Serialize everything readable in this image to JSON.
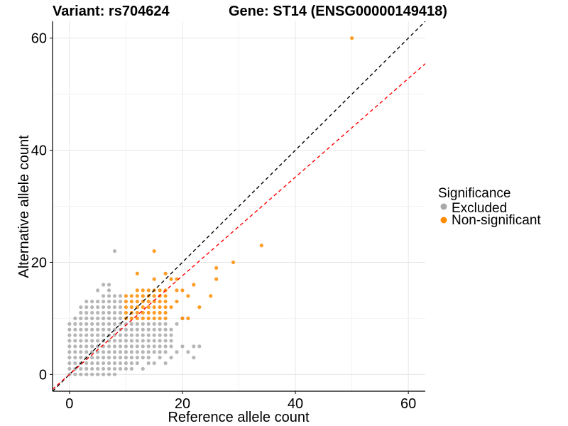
{
  "chart_data": {
    "type": "scatter",
    "title_left": "Variant: rs704624",
    "title_right": "Gene: ST14 (ENSG00000149418)",
    "xlabel": "Reference allele count",
    "ylabel": "Alternative allele count",
    "xlim": [
      -3,
      63
    ],
    "ylim": [
      -3,
      63
    ],
    "xticks": [
      0,
      20,
      40,
      60
    ],
    "yticks": [
      0,
      20,
      40,
      60
    ],
    "xtick_labels": [
      "0",
      "20",
      "40",
      "60"
    ],
    "ytick_labels": [
      "0",
      "20",
      "40",
      "60"
    ],
    "legend": {
      "title": "Significance",
      "position": "right",
      "entries": [
        {
          "label": "Excluded",
          "color": "#a9a9a9"
        },
        {
          "label": "Non-significant",
          "color": "#ff8c00"
        }
      ]
    },
    "reference_lines": [
      {
        "name": "identity",
        "slope": 1.0,
        "intercept": 0,
        "color": "#000000",
        "style": "dashed"
      },
      {
        "name": "fit",
        "slope": 0.88,
        "intercept": 0,
        "color": "#ff0000",
        "style": "dashed"
      }
    ],
    "series": [
      {
        "name": "Excluded",
        "color": "#a9a9a9",
        "points": [
          [
            0,
            0
          ],
          [
            0,
            1
          ],
          [
            0,
            2
          ],
          [
            0,
            3
          ],
          [
            0,
            4
          ],
          [
            0,
            5
          ],
          [
            0,
            6
          ],
          [
            0,
            7
          ],
          [
            0,
            8
          ],
          [
            0,
            9
          ],
          [
            1,
            0
          ],
          [
            1,
            1
          ],
          [
            1,
            2
          ],
          [
            1,
            3
          ],
          [
            1,
            4
          ],
          [
            1,
            5
          ],
          [
            1,
            6
          ],
          [
            1,
            7
          ],
          [
            1,
            8
          ],
          [
            1,
            9
          ],
          [
            1,
            10
          ],
          [
            2,
            0
          ],
          [
            2,
            1
          ],
          [
            2,
            2
          ],
          [
            2,
            3
          ],
          [
            2,
            4
          ],
          [
            2,
            5
          ],
          [
            2,
            6
          ],
          [
            2,
            7
          ],
          [
            2,
            8
          ],
          [
            2,
            9
          ],
          [
            2,
            10
          ],
          [
            2,
            11
          ],
          [
            2,
            12
          ],
          [
            3,
            0
          ],
          [
            3,
            1
          ],
          [
            3,
            2
          ],
          [
            3,
            3
          ],
          [
            3,
            4
          ],
          [
            3,
            5
          ],
          [
            3,
            6
          ],
          [
            3,
            7
          ],
          [
            3,
            8
          ],
          [
            3,
            9
          ],
          [
            3,
            10
          ],
          [
            3,
            11
          ],
          [
            3,
            12
          ],
          [
            3,
            13
          ],
          [
            4,
            0
          ],
          [
            4,
            1
          ],
          [
            4,
            2
          ],
          [
            4,
            3
          ],
          [
            4,
            4
          ],
          [
            4,
            5
          ],
          [
            4,
            6
          ],
          [
            4,
            7
          ],
          [
            4,
            8
          ],
          [
            4,
            9
          ],
          [
            4,
            10
          ],
          [
            4,
            11
          ],
          [
            4,
            12
          ],
          [
            4,
            13
          ],
          [
            5,
            0
          ],
          [
            5,
            1
          ],
          [
            5,
            2
          ],
          [
            5,
            3
          ],
          [
            5,
            4
          ],
          [
            5,
            5
          ],
          [
            5,
            6
          ],
          [
            5,
            7
          ],
          [
            5,
            8
          ],
          [
            5,
            9
          ],
          [
            5,
            10
          ],
          [
            5,
            11
          ],
          [
            5,
            12
          ],
          [
            5,
            13
          ],
          [
            5,
            15
          ],
          [
            6,
            0
          ],
          [
            6,
            1
          ],
          [
            6,
            2
          ],
          [
            6,
            3
          ],
          [
            6,
            4
          ],
          [
            6,
            5
          ],
          [
            6,
            6
          ],
          [
            6,
            7
          ],
          [
            6,
            8
          ],
          [
            6,
            9
          ],
          [
            6,
            10
          ],
          [
            6,
            11
          ],
          [
            6,
            12
          ],
          [
            6,
            13
          ],
          [
            6,
            14
          ],
          [
            6,
            16
          ],
          [
            7,
            0
          ],
          [
            7,
            1
          ],
          [
            7,
            2
          ],
          [
            7,
            3
          ],
          [
            7,
            4
          ],
          [
            7,
            5
          ],
          [
            7,
            6
          ],
          [
            7,
            7
          ],
          [
            7,
            8
          ],
          [
            7,
            9
          ],
          [
            7,
            10
          ],
          [
            7,
            11
          ],
          [
            7,
            12
          ],
          [
            7,
            13
          ],
          [
            7,
            14
          ],
          [
            7,
            15
          ],
          [
            7,
            16
          ],
          [
            8,
            0
          ],
          [
            8,
            1
          ],
          [
            8,
            2
          ],
          [
            8,
            3
          ],
          [
            8,
            4
          ],
          [
            8,
            5
          ],
          [
            8,
            6
          ],
          [
            8,
            7
          ],
          [
            8,
            8
          ],
          [
            8,
            9
          ],
          [
            8,
            10
          ],
          [
            8,
            11
          ],
          [
            8,
            12
          ],
          [
            8,
            13
          ],
          [
            8,
            14
          ],
          [
            8,
            22
          ],
          [
            9,
            1
          ],
          [
            9,
            2
          ],
          [
            9,
            3
          ],
          [
            9,
            4
          ],
          [
            9,
            5
          ],
          [
            9,
            6
          ],
          [
            9,
            7
          ],
          [
            9,
            8
          ],
          [
            9,
            9
          ],
          [
            9,
            10
          ],
          [
            9,
            11
          ],
          [
            9,
            12
          ],
          [
            9,
            13
          ],
          [
            9,
            14
          ],
          [
            10,
            1
          ],
          [
            10,
            2
          ],
          [
            10,
            3
          ],
          [
            10,
            4
          ],
          [
            10,
            5
          ],
          [
            10,
            6
          ],
          [
            10,
            7
          ],
          [
            10,
            8
          ],
          [
            10,
            9
          ],
          [
            11,
            1
          ],
          [
            11,
            2
          ],
          [
            11,
            3
          ],
          [
            11,
            4
          ],
          [
            11,
            5
          ],
          [
            11,
            6
          ],
          [
            11,
            7
          ],
          [
            11,
            8
          ],
          [
            11,
            9
          ],
          [
            12,
            2
          ],
          [
            12,
            3
          ],
          [
            12,
            4
          ],
          [
            12,
            5
          ],
          [
            12,
            6
          ],
          [
            12,
            7
          ],
          [
            12,
            8
          ],
          [
            12,
            9
          ],
          [
            13,
            1
          ],
          [
            13,
            3
          ],
          [
            13,
            4
          ],
          [
            13,
            5
          ],
          [
            13,
            6
          ],
          [
            13,
            7
          ],
          [
            13,
            8
          ],
          [
            13,
            9
          ],
          [
            14,
            2
          ],
          [
            14,
            3
          ],
          [
            14,
            4
          ],
          [
            14,
            5
          ],
          [
            14,
            6
          ],
          [
            14,
            7
          ],
          [
            14,
            8
          ],
          [
            14,
            9
          ],
          [
            15,
            2
          ],
          [
            15,
            4
          ],
          [
            15,
            5
          ],
          [
            15,
            6
          ],
          [
            15,
            7
          ],
          [
            15,
            8
          ],
          [
            15,
            9
          ],
          [
            16,
            3
          ],
          [
            16,
            4
          ],
          [
            16,
            5
          ],
          [
            16,
            6
          ],
          [
            16,
            7
          ],
          [
            16,
            8
          ],
          [
            16,
            9
          ],
          [
            17,
            2
          ],
          [
            17,
            4
          ],
          [
            17,
            5
          ],
          [
            17,
            6
          ],
          [
            17,
            7
          ],
          [
            17,
            8
          ],
          [
            17,
            9
          ],
          [
            18,
            3
          ],
          [
            18,
            5
          ],
          [
            18,
            6
          ],
          [
            18,
            7
          ],
          [
            18,
            8
          ],
          [
            19,
            4
          ],
          [
            19,
            9
          ],
          [
            20,
            5
          ],
          [
            20,
            10
          ],
          [
            21,
            4
          ],
          [
            22,
            3
          ],
          [
            22,
            5
          ],
          [
            23,
            5
          ]
        ]
      },
      {
        "name": "Non-significant",
        "color": "#ff8c00",
        "points": [
          [
            10,
            10
          ],
          [
            10,
            11
          ],
          [
            10,
            12
          ],
          [
            10,
            13
          ],
          [
            10,
            14
          ],
          [
            11,
            10
          ],
          [
            11,
            11
          ],
          [
            11,
            12
          ],
          [
            11,
            13
          ],
          [
            11,
            14
          ],
          [
            12,
            10
          ],
          [
            12,
            11
          ],
          [
            12,
            12
          ],
          [
            12,
            13
          ],
          [
            12,
            14
          ],
          [
            12,
            15
          ],
          [
            12,
            18
          ],
          [
            13,
            10
          ],
          [
            13,
            11
          ],
          [
            13,
            12
          ],
          [
            13,
            13
          ],
          [
            13,
            14
          ],
          [
            13,
            15
          ],
          [
            14,
            10
          ],
          [
            14,
            11
          ],
          [
            14,
            12
          ],
          [
            14,
            13
          ],
          [
            14,
            14
          ],
          [
            14,
            15
          ],
          [
            15,
            10
          ],
          [
            15,
            11
          ],
          [
            15,
            12
          ],
          [
            15,
            13
          ],
          [
            15,
            14
          ],
          [
            15,
            15
          ],
          [
            15,
            17
          ],
          [
            15,
            22
          ],
          [
            16,
            10
          ],
          [
            16,
            11
          ],
          [
            16,
            12
          ],
          [
            16,
            13
          ],
          [
            16,
            14
          ],
          [
            16,
            15
          ],
          [
            17,
            10
          ],
          [
            17,
            11
          ],
          [
            17,
            12
          ],
          [
            17,
            13
          ],
          [
            17,
            14
          ],
          [
            17,
            15
          ],
          [
            17,
            18
          ],
          [
            18,
            12
          ],
          [
            18,
            17
          ],
          [
            19,
            13
          ],
          [
            19,
            15
          ],
          [
            19,
            17
          ],
          [
            20,
            10
          ],
          [
            20,
            15
          ],
          [
            21,
            10
          ],
          [
            21,
            14
          ],
          [
            22,
            16
          ],
          [
            23,
            12
          ],
          [
            25,
            14
          ],
          [
            26,
            17
          ],
          [
            26,
            19
          ],
          [
            29,
            20
          ],
          [
            34,
            23
          ],
          [
            50,
            60
          ]
        ]
      }
    ]
  }
}
